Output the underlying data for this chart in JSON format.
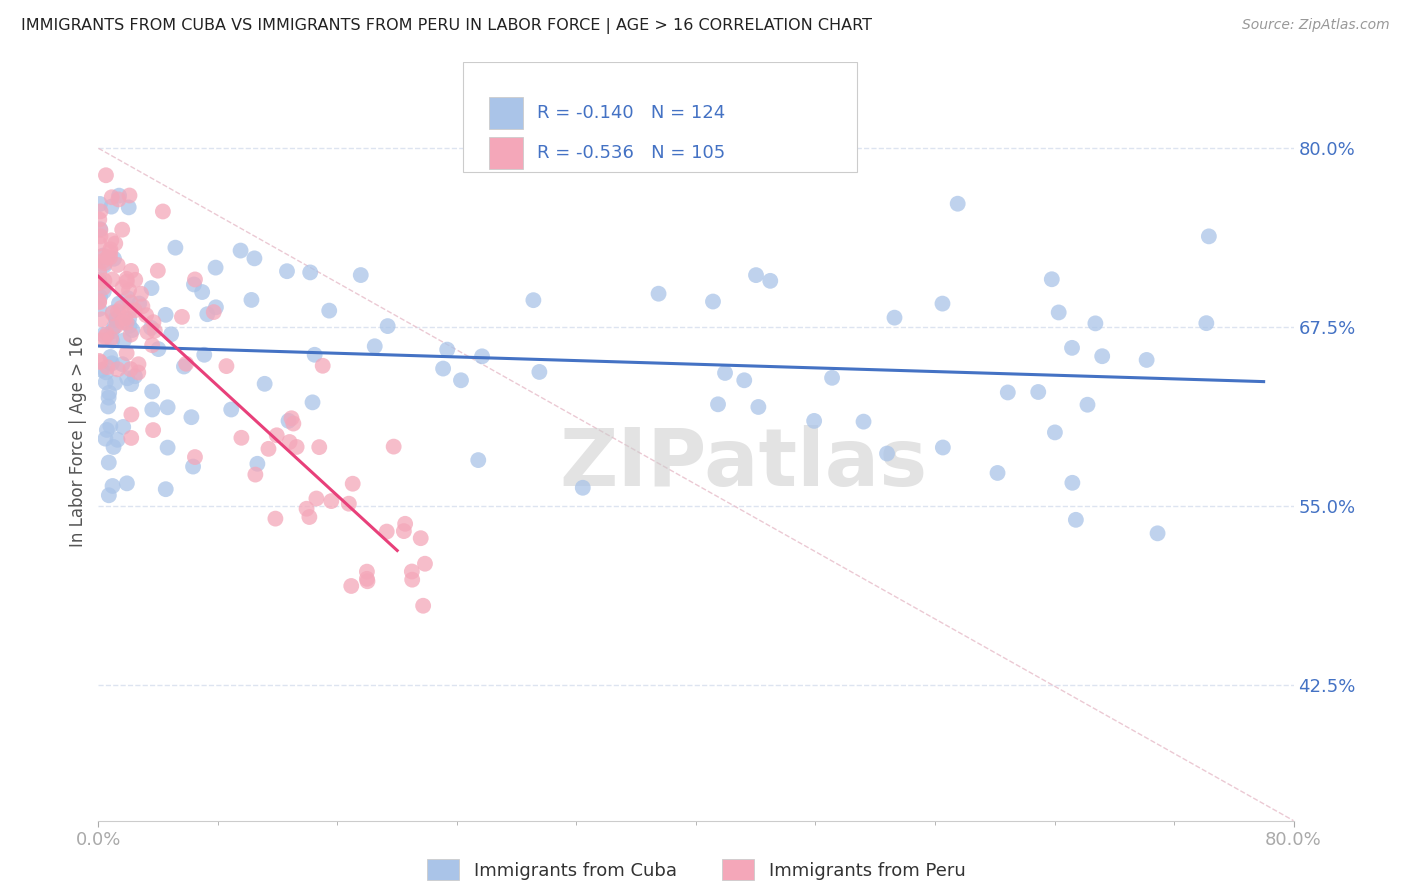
{
  "title": "IMMIGRANTS FROM CUBA VS IMMIGRANTS FROM PERU IN LABOR FORCE | AGE > 16 CORRELATION CHART",
  "source_text": "Source: ZipAtlas.com",
  "ylabel": "In Labor Force | Age > 16",
  "xlim": [
    0.0,
    80.0
  ],
  "ylim": [
    33.0,
    86.0
  ],
  "yticks": [
    42.5,
    55.0,
    67.5,
    80.0
  ],
  "ytick_labels": [
    "42.5%",
    "55.0%",
    "67.5%",
    "80.0%"
  ],
  "cuba_R": "-0.140",
  "cuba_N": "124",
  "peru_R": "-0.536",
  "peru_N": "105",
  "cuba_color": "#aac4e8",
  "peru_color": "#f4a7b9",
  "cuba_line_color": "#4472c4",
  "peru_line_color": "#e8407a",
  "diagonal_color": "#e8c0cc",
  "legend_label_cuba": "Immigrants from Cuba",
  "legend_label_peru": "Immigrants from Peru",
  "background_color": "#ffffff",
  "grid_color": "#dde4f0",
  "axis_label_color": "#4472c4",
  "ylabel_color": "#555555",
  "title_color": "#222222",
  "source_color": "#999999",
  "watermark_text": "ZIPatlas",
  "legend_box_color": "#cccccc",
  "bottom_tick_color": "#aaaaaa"
}
